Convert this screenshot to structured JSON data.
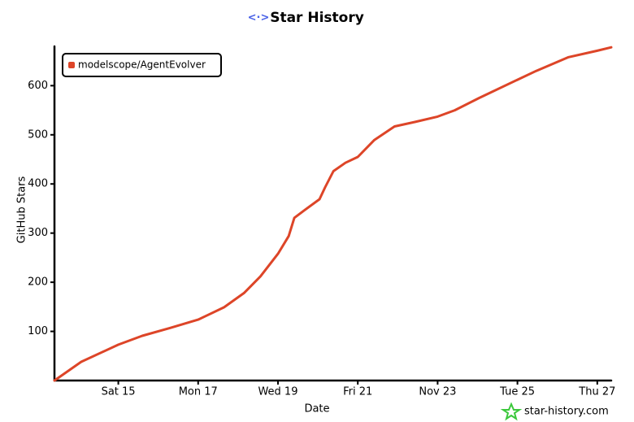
{
  "chart_data": {
    "type": "line",
    "title": "Star History",
    "x_label": "Date",
    "y_label": "GitHub Stars",
    "watermark": "star-history.com",
    "x": [
      13.4,
      14.07,
      15,
      15.6,
      16.3,
      17,
      17.65,
      18.15,
      18.56,
      19,
      19.27,
      19.41,
      19.67,
      20.04,
      20.18,
      20.39,
      20.69,
      21,
      21.41,
      21.92,
      22.42,
      23,
      23.43,
      24.04,
      25,
      25.47,
      26.28,
      27,
      27.35
    ],
    "series": [
      {
        "name": "modelscope/AgentEvolver",
        "color": "#dd4528",
        "values": [
          0,
          38,
          73,
          91,
          107,
          124,
          149,
          178,
          212,
          258,
          294,
          331,
          347,
          369,
          393,
          426,
          443,
          455,
          489,
          517,
          526,
          537,
          550,
          575,
          612,
          630,
          658,
          671,
          678
        ]
      }
    ],
    "xlim": [
      13.4,
      27.35
    ],
    "xticks": [
      {
        "value": 15,
        "label": "Sat 15"
      },
      {
        "value": 17,
        "label": "Mon 17"
      },
      {
        "value": 19,
        "label": "Wed 19"
      },
      {
        "value": 21,
        "label": "Fri 21"
      },
      {
        "value": 23,
        "label": "Nov 23"
      },
      {
        "value": 25,
        "label": "Tue 25"
      },
      {
        "value": 27,
        "label": "Thu 27"
      }
    ],
    "ylim": [
      0,
      680
    ],
    "yticks": [
      100,
      200,
      300,
      400,
      500,
      600
    ],
    "grid": false,
    "legend": "top-left"
  }
}
